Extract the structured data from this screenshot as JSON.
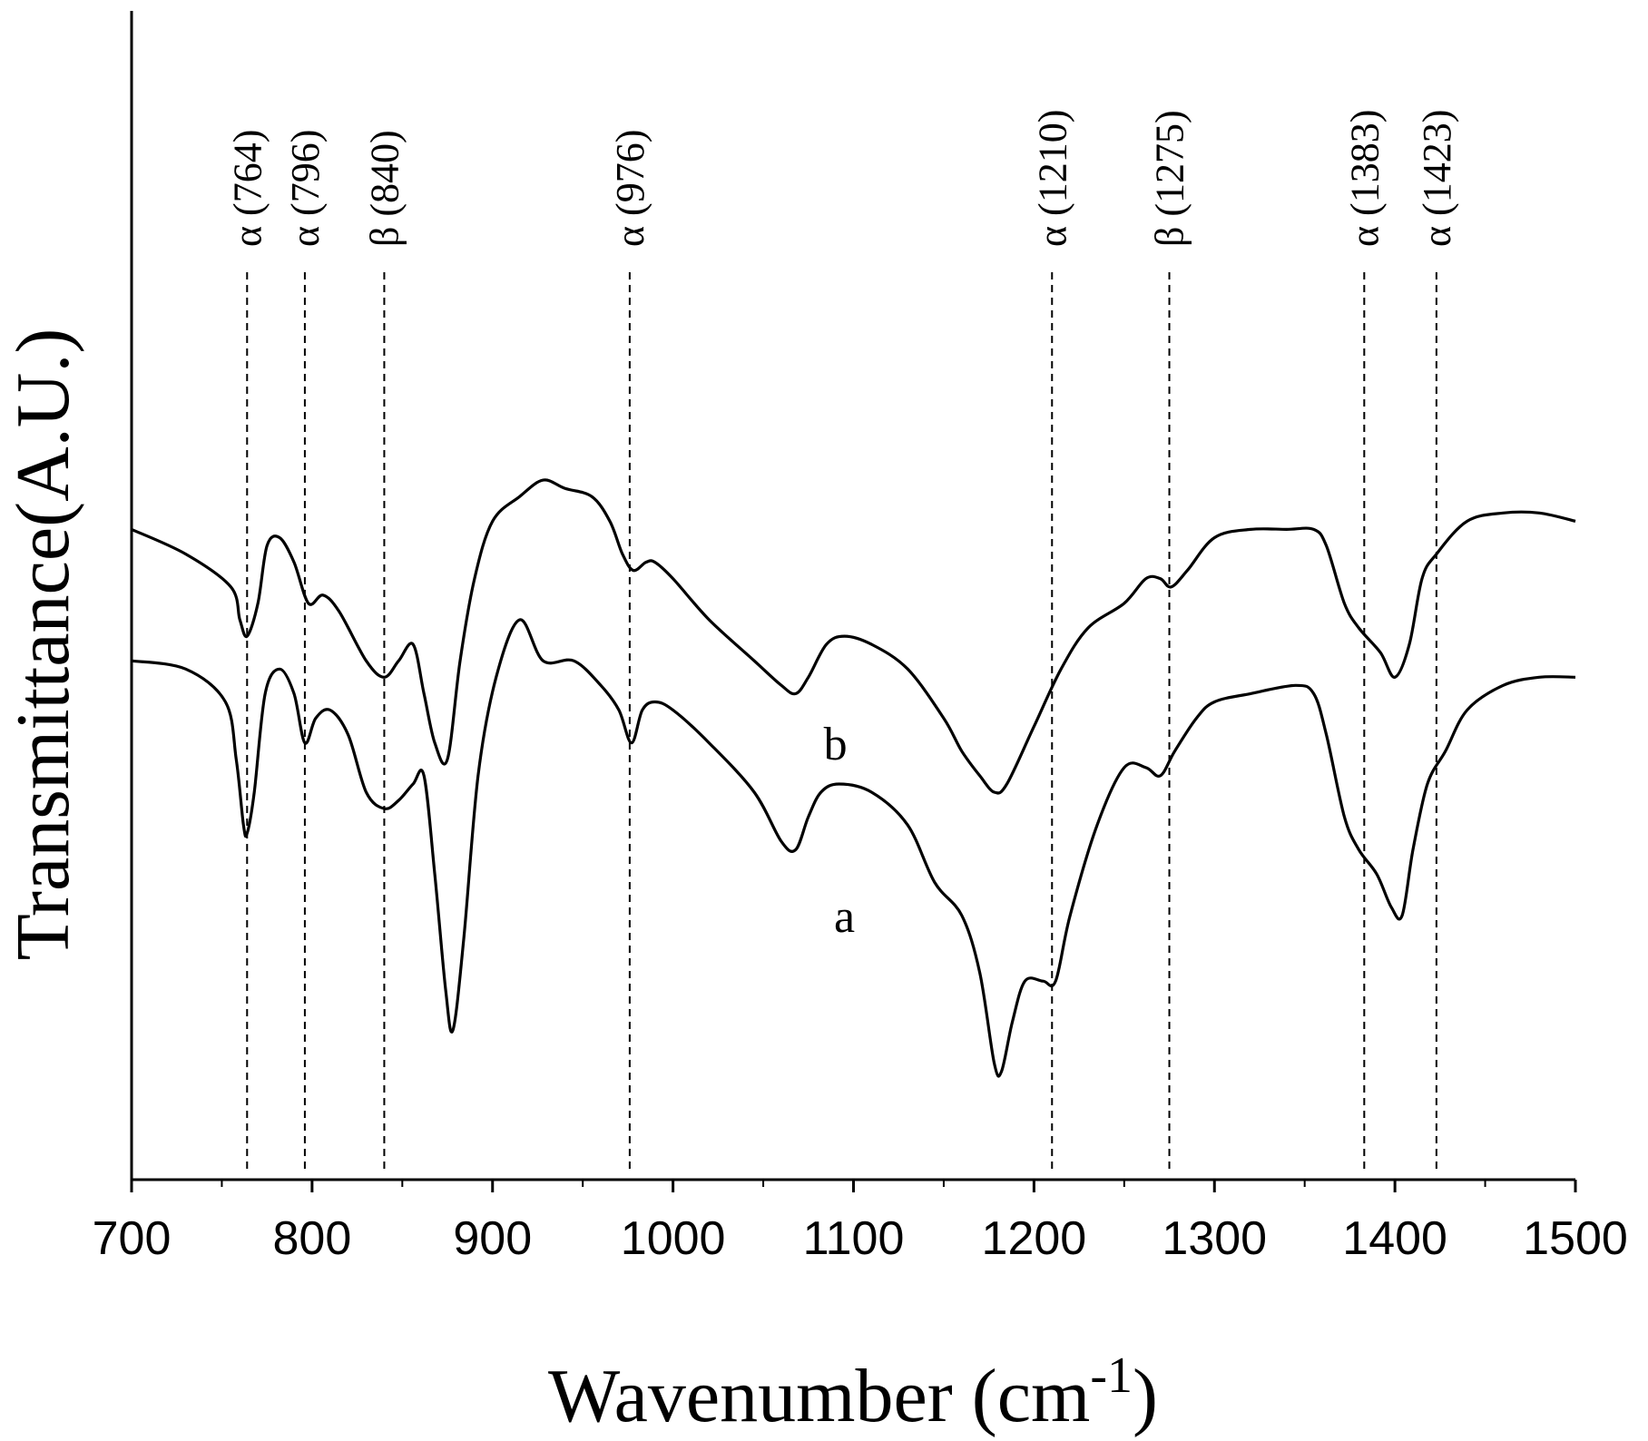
{
  "chart_data": {
    "type": "line",
    "title": "",
    "xlabel": "Wavenumber (cm",
    "xlabel_superscript": "-1",
    "xlabel_close": ")",
    "ylabel": "Transmittance(A.U.)",
    "xlim": [
      700,
      1500
    ],
    "ylim": [
      0,
      100
    ],
    "x_ticks": [
      "700",
      "800",
      "900",
      "1000",
      "1100",
      "1200",
      "1300",
      "1400",
      "1500"
    ],
    "x_tick_values": [
      700,
      800,
      900,
      1000,
      1100,
      1200,
      1300,
      1400,
      1500
    ],
    "grid": false,
    "legend": "inline labels",
    "peak_markers": [
      {
        "phase": "α",
        "wavenumber": 764,
        "label": "α (764)"
      },
      {
        "phase": "α",
        "wavenumber": 796,
        "label": "α (796)"
      },
      {
        "phase": "β",
        "wavenumber": 840,
        "label": "β (840)"
      },
      {
        "phase": "α",
        "wavenumber": 976,
        "label": "α (976)"
      },
      {
        "phase": "α",
        "wavenumber": 1210,
        "label": "α (1210)"
      },
      {
        "phase": "β",
        "wavenumber": 1275,
        "label": "β (1275)"
      },
      {
        "phase": "α",
        "wavenumber": 1383,
        "label": "α (1383)"
      },
      {
        "phase": "α",
        "wavenumber": 1423,
        "label": "α (1423)"
      }
    ],
    "series": [
      {
        "name": "b",
        "x": [
          700,
          730,
          755,
          760,
          764,
          770,
          775,
          782,
          790,
          798,
          806,
          815,
          830,
          840,
          848,
          856,
          862,
          868,
          875,
          882,
          890,
          900,
          915,
          928,
          940,
          955,
          965,
          972,
          978,
          985,
          990,
          1000,
          1020,
          1045,
          1060,
          1068,
          1075,
          1085,
          1095,
          1110,
          1130,
          1150,
          1160,
          1170,
          1178,
          1185,
          1200,
          1215,
          1230,
          1250,
          1262,
          1270,
          1276,
          1285,
          1300,
          1320,
          1340,
          1355,
          1362,
          1372,
          1380,
          1392,
          1400,
          1408,
          1415,
          1423,
          1440,
          1460,
          1480,
          1500
        ],
        "y": [
          72,
          69,
          65,
          61,
          59,
          63,
          70,
          71,
          68,
          63,
          64,
          62,
          56,
          54,
          56,
          58,
          52,
          46,
          44,
          56,
          66,
          73,
          76,
          78,
          77,
          76,
          73,
          69,
          67,
          68,
          68,
          66,
          61,
          56,
          53,
          52,
          54,
          58,
          59,
          58,
          55,
          49,
          45,
          42,
          40,
          41,
          48,
          55,
          60,
          63,
          66,
          66,
          65,
          67,
          71,
          72,
          72,
          72,
          70,
          63,
          60,
          57,
          54,
          58,
          66,
          69,
          73,
          74,
          74,
          73
        ]
      },
      {
        "name": "a",
        "x": [
          700,
          730,
          752,
          758,
          762,
          764,
          768,
          774,
          782,
          790,
          796,
          802,
          810,
          820,
          830,
          840,
          848,
          856,
          862,
          868,
          874,
          878,
          884,
          892,
          902,
          915,
          928,
          945,
          960,
          970,
          977,
          983,
          990,
          1000,
          1020,
          1045,
          1060,
          1068,
          1075,
          1082,
          1092,
          1110,
          1130,
          1145,
          1160,
          1170,
          1178,
          1182,
          1188,
          1195,
          1205,
          1212,
          1220,
          1235,
          1250,
          1262,
          1270,
          1278,
          1290,
          1300,
          1320,
          1345,
          1355,
          1362,
          1372,
          1380,
          1390,
          1398,
          1404,
          1410,
          1418,
          1428,
          1440,
          1460,
          1480,
          1500
        ],
        "y": [
          56,
          55,
          51,
          44,
          36,
          35,
          40,
          52,
          55,
          52,
          46,
          49,
          50,
          47,
          40,
          38,
          39,
          41,
          42,
          30,
          16,
          11,
          22,
          42,
          54,
          61,
          56,
          56,
          53,
          50,
          46,
          50,
          51,
          50,
          46,
          40,
          34,
          33,
          37,
          40,
          41,
          40,
          36,
          29,
          25,
          18,
          7,
          6,
          12,
          17,
          17,
          17,
          25,
          36,
          43,
          43,
          42,
          45,
          49,
          51,
          52,
          53,
          52,
          47,
          37,
          33,
          30,
          26,
          25,
          33,
          41,
          45,
          50,
          53,
          54,
          54
        ]
      }
    ]
  }
}
